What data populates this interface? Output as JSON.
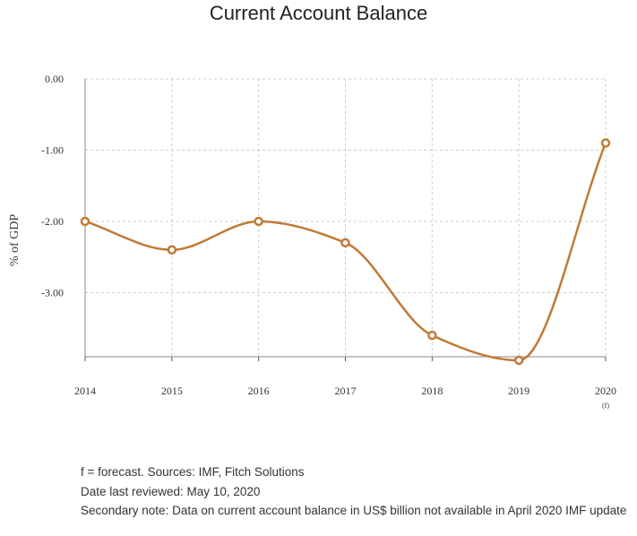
{
  "chart_data": {
    "type": "line",
    "title": "Current Account Balance",
    "xlabel": "",
    "ylabel": "% of GDP",
    "categories": [
      "2014",
      "2015",
      "2016",
      "2017",
      "2018",
      "2019",
      "2020"
    ],
    "category_sublabels": [
      "",
      "",
      "",
      "",
      "",
      "",
      "(f)"
    ],
    "series": [
      {
        "values": [
          -2.0,
          -2.4,
          -2.0,
          -2.3,
          -3.6,
          -3.95,
          -0.9
        ]
      }
    ],
    "yticks": [
      "0.00",
      "-1.00",
      "-2.00",
      "-3.00"
    ],
    "ylim": [
      -3.9,
      0
    ],
    "grid": true,
    "legend": "none",
    "color": "#c07a36"
  },
  "notes": {
    "forecast": "f = forecast. Sources: IMF, Fitch Solutions",
    "reviewed": "Date last reviewed: May 10, 2020",
    "secondary": "Secondary note: Data on current account balance in US$ billion not available in April 2020 IMF update"
  }
}
